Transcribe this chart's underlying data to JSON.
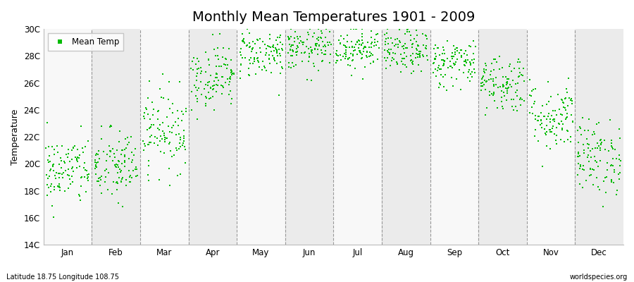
{
  "title": "Monthly Mean Temperatures 1901 - 2009",
  "ylabel": "Temperature",
  "bottom_left": "Latitude 18.75 Longitude 108.75",
  "bottom_right": "worldspecies.org",
  "legend_label": "Mean Temp",
  "ylim": [
    14,
    30
  ],
  "ytick_labels": [
    "14C",
    "16C",
    "18C",
    "20C",
    "22C",
    "24C",
    "26C",
    "28C",
    "30C"
  ],
  "ytick_values": [
    14,
    16,
    18,
    20,
    22,
    24,
    26,
    28,
    30
  ],
  "months": [
    "Jan",
    "Feb",
    "Mar",
    "Apr",
    "May",
    "Jun",
    "Jul",
    "Aug",
    "Sep",
    "Oct",
    "Nov",
    "Dec"
  ],
  "monthly_means": [
    19.5,
    19.8,
    22.5,
    26.5,
    28.2,
    28.5,
    28.6,
    28.3,
    27.5,
    26.0,
    23.5,
    20.5
  ],
  "monthly_stds": [
    1.3,
    1.4,
    1.5,
    1.2,
    0.9,
    0.8,
    0.8,
    0.8,
    0.9,
    1.1,
    1.3,
    1.4
  ],
  "n_years": 109,
  "marker_color": "#00bb00",
  "marker_size": 3,
  "bg_color_odd": "#ebebeb",
  "bg_color_even": "#f8f8f8",
  "dashed_line_color": "#999999",
  "title_fontsize": 14,
  "axis_fontsize": 9,
  "tick_fontsize": 8.5,
  "legend_fontsize": 8.5
}
